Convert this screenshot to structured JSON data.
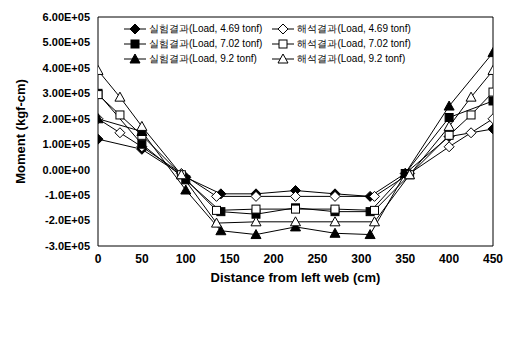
{
  "chart_data": {
    "type": "line",
    "x_label": "Distance from left web (cm)",
    "y_label": "Moment (kgf-cm)",
    "xlim": [
      0,
      450
    ],
    "xticks": [
      0,
      50,
      100,
      150,
      200,
      250,
      300,
      350,
      400,
      450
    ],
    "ylim": [
      -300000,
      600000
    ],
    "yticks": [
      {
        "value": -300000,
        "label": "-3.0E+05"
      },
      {
        "value": -200000,
        "label": "-2.0E+05"
      },
      {
        "value": -100000,
        "label": "-1.0E+05"
      },
      {
        "value": 0,
        "label": "0.00E+00"
      },
      {
        "value": 100000,
        "label": "1.00E+05"
      },
      {
        "value": 200000,
        "label": "2.00E+05"
      },
      {
        "value": 300000,
        "label": "3.00E+05"
      },
      {
        "value": 400000,
        "label": "4.00E+05"
      },
      {
        "value": 500000,
        "label": "5.00E+05"
      },
      {
        "value": 600000,
        "label": "6.00E+05"
      }
    ],
    "grid": false,
    "legend": "upper left",
    "series": [
      {
        "name": "실험결과(Load, 4.69 tonf)",
        "color": "#000000",
        "marker": "diamond",
        "x": [
          0,
          50,
          100,
          140,
          180,
          225,
          270,
          310,
          350,
          400,
          450
        ],
        "values": [
          120000,
          80000,
          -30000,
          -95000,
          -95000,
          -82000,
          -95000,
          -105000,
          -15000,
          130000,
          160000
        ]
      },
      {
        "name": "해석결과(Load, 4.69 tonf)",
        "color": "#000000",
        "marker": "open-diamond",
        "x": [
          0,
          25,
          50,
          95,
          135,
          180,
          225,
          270,
          315,
          355,
          400,
          425,
          450
        ],
        "values": [
          200000,
          145000,
          90000,
          -15000,
          -105000,
          -105000,
          -105000,
          -105000,
          -105000,
          -15000,
          90000,
          145000,
          200000
        ]
      },
      {
        "name": "실험결과(Load, 7.02 tonf)",
        "color": "#000000",
        "marker": "square",
        "x": [
          0,
          50,
          100,
          140,
          180,
          225,
          270,
          310,
          350,
          400,
          450
        ],
        "values": [
          300000,
          100000,
          -40000,
          -165000,
          -175000,
          -150000,
          -165000,
          -165000,
          -15000,
          205000,
          270000
        ]
      },
      {
        "name": "해석결과(Load, 7.02 tonf)",
        "color": "#000000",
        "marker": "open-square",
        "x": [
          0,
          25,
          50,
          95,
          135,
          180,
          225,
          270,
          315,
          355,
          400,
          425,
          450
        ],
        "values": [
          295000,
          215000,
          135000,
          -20000,
          -160000,
          -155000,
          -155000,
          -155000,
          -160000,
          -20000,
          135000,
          215000,
          305000
        ]
      },
      {
        "name": "실험결과(Load, 9.2 tonf)",
        "color": "#000000",
        "marker": "triangle",
        "x": [
          0,
          50,
          100,
          140,
          180,
          225,
          270,
          310,
          350,
          400,
          450
        ],
        "values": [
          200000,
          150000,
          -80000,
          -240000,
          -255000,
          -225000,
          -250000,
          -255000,
          -15000,
          250000,
          460000
        ]
      },
      {
        "name": "해석결과(Load, 9.2 tonf)",
        "color": "#000000",
        "marker": "open-triangle",
        "x": [
          0,
          25,
          50,
          95,
          135,
          180,
          225,
          270,
          315,
          355,
          400,
          425,
          450
        ],
        "values": [
          390000,
          285000,
          170000,
          -20000,
          -210000,
          -205000,
          -205000,
          -205000,
          -205000,
          -20000,
          170000,
          285000,
          390000
        ]
      }
    ]
  }
}
